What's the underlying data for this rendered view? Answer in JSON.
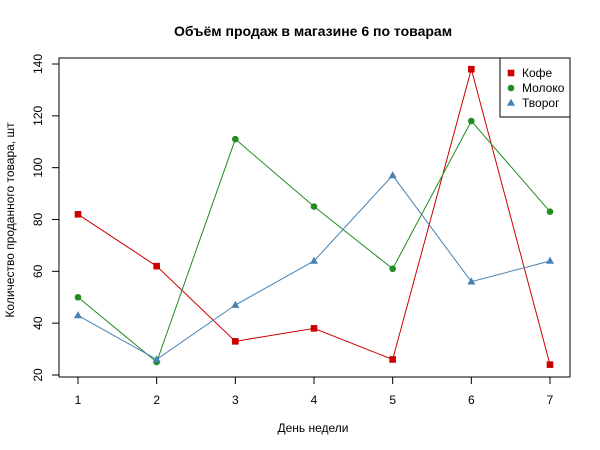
{
  "chart_data": {
    "type": "line",
    "title": "Объём продаж в магазине 6 по товарам",
    "xlabel": "День недели",
    "ylabel": "Количество проданного товара, шт",
    "x": [
      1,
      2,
      3,
      4,
      5,
      6,
      7
    ],
    "xlim": [
      1,
      7
    ],
    "ylim": [
      20,
      140
    ],
    "yticks": [
      20,
      40,
      60,
      80,
      100,
      120,
      140
    ],
    "grid": false,
    "legend_position": "top-right",
    "series": [
      {
        "name": "Кофе",
        "color": "#cc0000",
        "marker": "square",
        "values": [
          82,
          62,
          33,
          38,
          26,
          138,
          24
        ]
      },
      {
        "name": "Молоко",
        "color": "#228b22",
        "marker": "circle",
        "values": [
          50,
          25,
          111,
          85,
          61,
          118,
          83
        ]
      },
      {
        "name": "Творог",
        "color": "#4682b4",
        "marker": "triangle",
        "values": [
          43,
          26,
          47,
          64,
          97,
          56,
          64
        ]
      }
    ]
  }
}
